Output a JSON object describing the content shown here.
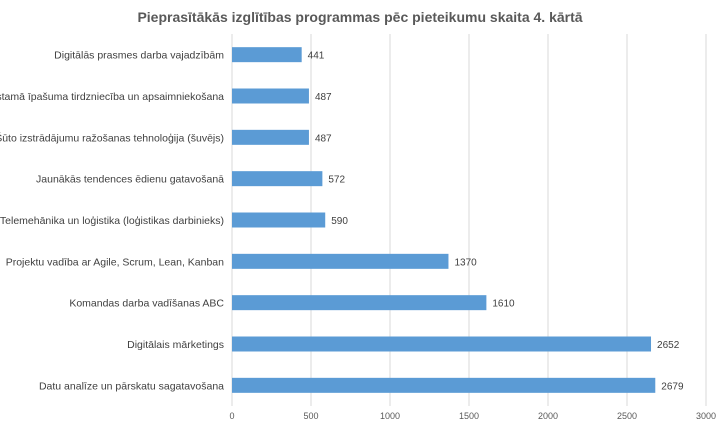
{
  "chart_data": {
    "type": "bar",
    "orientation": "horizontal",
    "title": "Pieprasītākās izglītības programmas pēc pieteikumu skaita 4. kārtā",
    "xlabel": "",
    "ylabel": "",
    "categories": [
      "Digitālās prasmes darba vajadzībām",
      "Nekustamā īpašuma tirdzniecība un apsaimniekošana",
      "Šūto izstrādājumu ražošanas tehnoloģija (šuvējs)",
      "Jaunākās tendences ēdienu gatavošanā",
      "Telemehānika un loģistika (loģistikas darbinieks)",
      "Projektu vadība ar Agile, Scrum, Lean, Kanban",
      "Komandas darba vadīšanas ABC",
      "Digitālais mārketings",
      "Datu analīze un pārskatu sagatavošana"
    ],
    "values": [
      441,
      487,
      487,
      572,
      590,
      1370,
      1610,
      2652,
      2679
    ],
    "xlim": [
      0,
      3000
    ],
    "xticks": [
      "0",
      "500",
      "1000",
      "1500",
      "2000",
      "2500",
      "3000"
    ],
    "grid": true,
    "legend": "none",
    "bar_color": "#5B9BD5"
  }
}
